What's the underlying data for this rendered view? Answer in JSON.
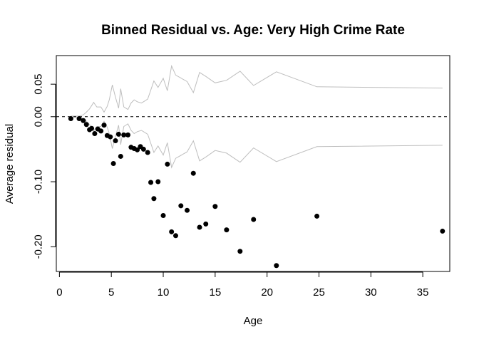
{
  "chart_data": {
    "type": "scatter",
    "title": "Binned Residual vs. Age: Very High Crime Rate",
    "xlabel": "Age",
    "ylabel": "Average residual",
    "xlim": [
      -0.3,
      37.6
    ],
    "ylim": [
      -0.238,
      0.094
    ],
    "x_ticks": [
      0,
      5,
      10,
      15,
      20,
      25,
      30,
      35
    ],
    "x_tick_labels": [
      "0",
      "5",
      "10",
      "15",
      "20",
      "25",
      "30",
      "35"
    ],
    "y_ticks": [
      0.05,
      0.0,
      -0.1,
      -0.2
    ],
    "y_tick_labels": [
      "0.05",
      "0.00",
      "-0.10",
      "-0.20"
    ],
    "reference_line": {
      "y": 0.0,
      "style": "dashed",
      "color": "#000000"
    },
    "points": [
      {
        "x": 1.1,
        "y": -0.003
      },
      {
        "x": 1.9,
        "y": -0.003
      },
      {
        "x": 2.3,
        "y": -0.006
      },
      {
        "x": 2.6,
        "y": -0.012
      },
      {
        "x": 2.9,
        "y": -0.02
      },
      {
        "x": 3.1,
        "y": -0.018
      },
      {
        "x": 3.4,
        "y": -0.026
      },
      {
        "x": 3.7,
        "y": -0.019
      },
      {
        "x": 4.0,
        "y": -0.022
      },
      {
        "x": 4.3,
        "y": -0.013
      },
      {
        "x": 4.6,
        "y": -0.029
      },
      {
        "x": 4.9,
        "y": -0.031
      },
      {
        "x": 5.2,
        "y": -0.072
      },
      {
        "x": 5.4,
        "y": -0.037
      },
      {
        "x": 5.7,
        "y": -0.027
      },
      {
        "x": 5.9,
        "y": -0.061
      },
      {
        "x": 6.2,
        "y": -0.028
      },
      {
        "x": 6.6,
        "y": -0.028
      },
      {
        "x": 6.9,
        "y": -0.047
      },
      {
        "x": 7.2,
        "y": -0.049
      },
      {
        "x": 7.5,
        "y": -0.051
      },
      {
        "x": 7.8,
        "y": -0.046
      },
      {
        "x": 8.1,
        "y": -0.05
      },
      {
        "x": 8.5,
        "y": -0.055
      },
      {
        "x": 8.8,
        "y": -0.101
      },
      {
        "x": 9.1,
        "y": -0.126
      },
      {
        "x": 9.5,
        "y": -0.1
      },
      {
        "x": 10.0,
        "y": -0.152
      },
      {
        "x": 10.4,
        "y": -0.073
      },
      {
        "x": 10.8,
        "y": -0.177
      },
      {
        "x": 11.2,
        "y": -0.183
      },
      {
        "x": 11.7,
        "y": -0.137
      },
      {
        "x": 12.3,
        "y": -0.144
      },
      {
        "x": 12.9,
        "y": -0.087
      },
      {
        "x": 13.5,
        "y": -0.17
      },
      {
        "x": 14.1,
        "y": -0.165
      },
      {
        "x": 15.0,
        "y": -0.138
      },
      {
        "x": 16.1,
        "y": -0.174
      },
      {
        "x": 17.4,
        "y": -0.207
      },
      {
        "x": 18.7,
        "y": -0.158
      },
      {
        "x": 20.9,
        "y": -0.229
      },
      {
        "x": 24.8,
        "y": -0.153
      },
      {
        "x": 36.9,
        "y": -0.176
      }
    ],
    "band_color": "#bebebe",
    "upper_band": [
      {
        "x": 1.1,
        "y": 0.001
      },
      {
        "x": 1.9,
        "y": 0.001
      },
      {
        "x": 2.3,
        "y": 0.003
      },
      {
        "x": 2.6,
        "y": 0.007
      },
      {
        "x": 2.9,
        "y": 0.012
      },
      {
        "x": 3.1,
        "y": 0.017
      },
      {
        "x": 3.3,
        "y": 0.022
      },
      {
        "x": 3.6,
        "y": 0.015
      },
      {
        "x": 4.0,
        "y": 0.015
      },
      {
        "x": 4.3,
        "y": 0.007
      },
      {
        "x": 4.6,
        "y": 0.016
      },
      {
        "x": 4.8,
        "y": 0.026
      },
      {
        "x": 5.1,
        "y": 0.049
      },
      {
        "x": 5.4,
        "y": 0.03
      },
      {
        "x": 5.7,
        "y": 0.013
      },
      {
        "x": 5.9,
        "y": 0.043
      },
      {
        "x": 6.2,
        "y": 0.015
      },
      {
        "x": 6.6,
        "y": 0.011
      },
      {
        "x": 6.9,
        "y": 0.021
      },
      {
        "x": 7.2,
        "y": 0.026
      },
      {
        "x": 7.5,
        "y": 0.023
      },
      {
        "x": 7.9,
        "y": 0.021
      },
      {
        "x": 8.2,
        "y": 0.024
      },
      {
        "x": 8.5,
        "y": 0.027
      },
      {
        "x": 9.1,
        "y": 0.055
      },
      {
        "x": 9.5,
        "y": 0.045
      },
      {
        "x": 10.0,
        "y": 0.059
      },
      {
        "x": 10.4,
        "y": 0.04
      },
      {
        "x": 10.8,
        "y": 0.078
      },
      {
        "x": 11.2,
        "y": 0.064
      },
      {
        "x": 12.3,
        "y": 0.054
      },
      {
        "x": 12.9,
        "y": 0.037
      },
      {
        "x": 13.5,
        "y": 0.068
      },
      {
        "x": 14.1,
        "y": 0.062
      },
      {
        "x": 15.0,
        "y": 0.052
      },
      {
        "x": 16.1,
        "y": 0.056
      },
      {
        "x": 17.4,
        "y": 0.07
      },
      {
        "x": 18.7,
        "y": 0.048
      },
      {
        "x": 20.9,
        "y": 0.069
      },
      {
        "x": 24.8,
        "y": 0.046
      },
      {
        "x": 36.9,
        "y": 0.044
      }
    ],
    "lower_band": [
      {
        "x": 1.1,
        "y": -0.001
      },
      {
        "x": 1.9,
        "y": -0.001
      },
      {
        "x": 2.3,
        "y": -0.003
      },
      {
        "x": 2.6,
        "y": -0.007
      },
      {
        "x": 2.9,
        "y": -0.012
      },
      {
        "x": 3.1,
        "y": -0.017
      },
      {
        "x": 3.3,
        "y": -0.022
      },
      {
        "x": 3.6,
        "y": -0.015
      },
      {
        "x": 4.0,
        "y": -0.015
      },
      {
        "x": 4.3,
        "y": -0.007
      },
      {
        "x": 4.6,
        "y": -0.016
      },
      {
        "x": 4.8,
        "y": -0.026
      },
      {
        "x": 5.1,
        "y": -0.049
      },
      {
        "x": 5.4,
        "y": -0.03
      },
      {
        "x": 5.7,
        "y": -0.013
      },
      {
        "x": 5.9,
        "y": -0.043
      },
      {
        "x": 6.2,
        "y": -0.015
      },
      {
        "x": 6.6,
        "y": -0.011
      },
      {
        "x": 6.9,
        "y": -0.021
      },
      {
        "x": 7.2,
        "y": -0.026
      },
      {
        "x": 7.5,
        "y": -0.023
      },
      {
        "x": 7.9,
        "y": -0.021
      },
      {
        "x": 8.2,
        "y": -0.024
      },
      {
        "x": 8.5,
        "y": -0.027
      },
      {
        "x": 9.1,
        "y": -0.055
      },
      {
        "x": 9.5,
        "y": -0.045
      },
      {
        "x": 10.0,
        "y": -0.059
      },
      {
        "x": 10.4,
        "y": -0.04
      },
      {
        "x": 10.8,
        "y": -0.078
      },
      {
        "x": 11.2,
        "y": -0.064
      },
      {
        "x": 12.3,
        "y": -0.054
      },
      {
        "x": 12.9,
        "y": -0.037
      },
      {
        "x": 13.5,
        "y": -0.068
      },
      {
        "x": 14.1,
        "y": -0.062
      },
      {
        "x": 15.0,
        "y": -0.052
      },
      {
        "x": 16.1,
        "y": -0.056
      },
      {
        "x": 17.4,
        "y": -0.07
      },
      {
        "x": 18.7,
        "y": -0.048
      },
      {
        "x": 20.9,
        "y": -0.069
      },
      {
        "x": 24.8,
        "y": -0.046
      },
      {
        "x": 36.9,
        "y": -0.044
      }
    ],
    "grid": false,
    "legend": "none"
  }
}
